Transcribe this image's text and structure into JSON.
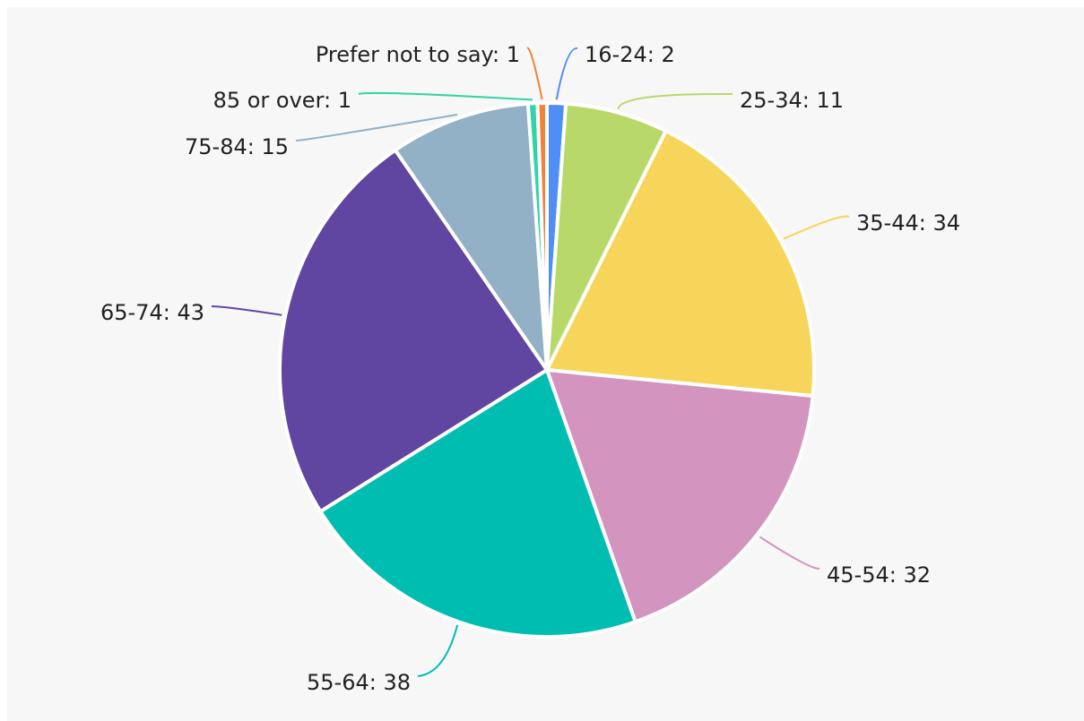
{
  "chart_data": {
    "type": "pie",
    "values": [
      2,
      11,
      34,
      32,
      38,
      43,
      15,
      1,
      1
    ],
    "value_labels": [
      "16-24: 2",
      "25-34: 11",
      "35-44: 34",
      "45-54: 32",
      "55-64: 38",
      "65-74: 43",
      "75-84: 15",
      "85 or over: 1",
      "Prefer not to say: 1"
    ],
    "colors": [
      "#4f8ef7",
      "#b8d96a",
      "#f7d55a",
      "#d394bf",
      "#00bdb2",
      "#6046a0",
      "#92b1c6",
      "#2fd5a5",
      "#f0823a"
    ]
  }
}
